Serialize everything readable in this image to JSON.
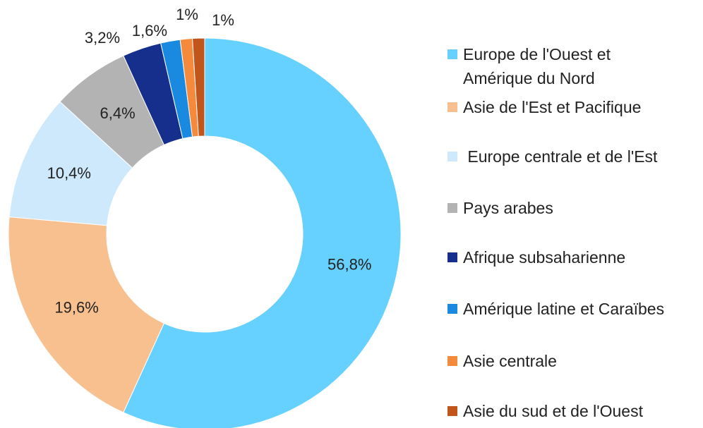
{
  "chart_data": {
    "type": "donut",
    "categories": [
      "Europe de l'Ouest et Amérique du Nord",
      "Asie de l'Est et Pacifique",
      " Europe centrale et de l'Est",
      "Pays arabes",
      "Afrique subsaharienne",
      "Amérique latine et Caraïbes",
      "Asie centrale",
      "Asie du sud et de l'Ouest"
    ],
    "values": [
      56.8,
      19.6,
      10.4,
      6.4,
      3.2,
      1.6,
      1,
      1
    ],
    "value_labels": [
      "56,8%",
      "19,6%",
      "10,4%",
      "6,4%",
      "3,2%",
      "1,6%",
      "1%",
      "1%"
    ],
    "colors": [
      "#66d0ff",
      "#f8c08f",
      "#cde9fb",
      "#b3b3b3",
      "#162f8c",
      "#1a8ae0",
      "#f58a3c",
      "#c0561b"
    ],
    "legend": "right"
  }
}
